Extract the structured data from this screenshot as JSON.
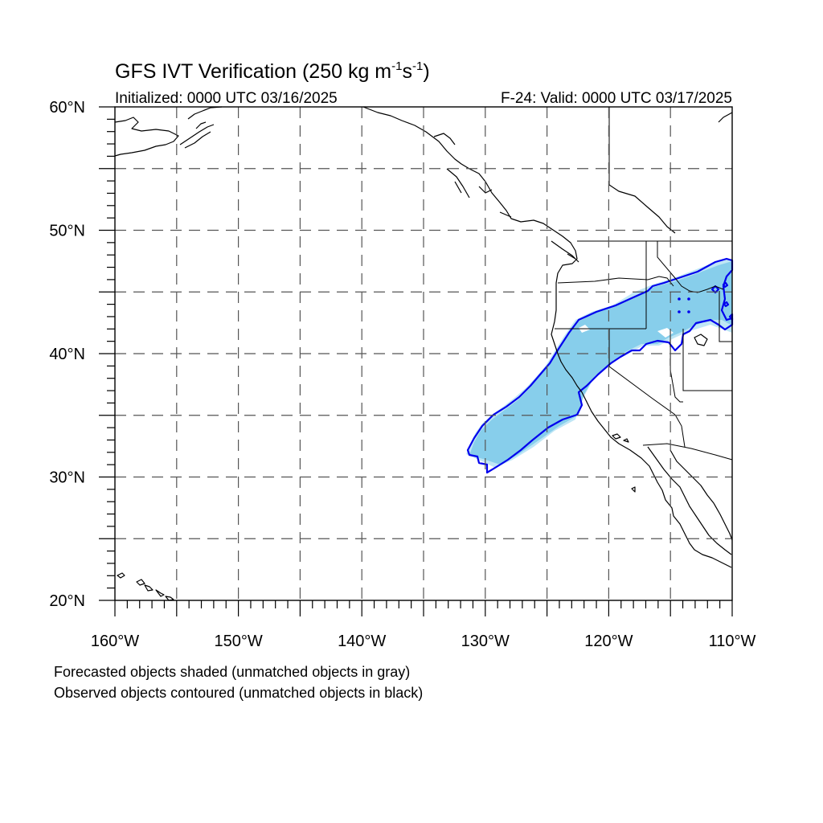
{
  "title_main": "GFS IVT Verification (250 kg m",
  "title_sup1": "-1",
  "title_mid": "s",
  "title_sup2": "-1",
  "title_end": ")",
  "initialized": "Initialized: 0000 UTC 03/16/2025",
  "valid": "F-24: Valid: 0000 UTC 03/17/2025",
  "lat_ticks": [
    {
      "value": 60,
      "label": "60°N"
    },
    {
      "value": 50,
      "label": "50°N"
    },
    {
      "value": 40,
      "label": "40°N"
    },
    {
      "value": 30,
      "label": "30°N"
    },
    {
      "value": 20,
      "label": "20°N"
    }
  ],
  "lon_ticks": [
    {
      "value": -160,
      "label": "160°W"
    },
    {
      "value": -150,
      "label": "150°W"
    },
    {
      "value": -140,
      "label": "140°W"
    },
    {
      "value": -130,
      "label": "130°W"
    },
    {
      "value": -120,
      "label": "120°W"
    },
    {
      "value": -110,
      "label": "110°W"
    }
  ],
  "extent": {
    "lon_min": -160,
    "lon_max": -110,
    "lat_min": 20,
    "lat_max": 60
  },
  "grid_interval_deg": 5,
  "footnote_1": "Forecasted objects shaded (unmatched objects in gray)",
  "footnote_2": "Observed objects contoured (unmatched objects in black)",
  "colors": {
    "forecast_fill": "#87ceeb",
    "observed_contour": "#0000ee",
    "grid": "#555555"
  }
}
